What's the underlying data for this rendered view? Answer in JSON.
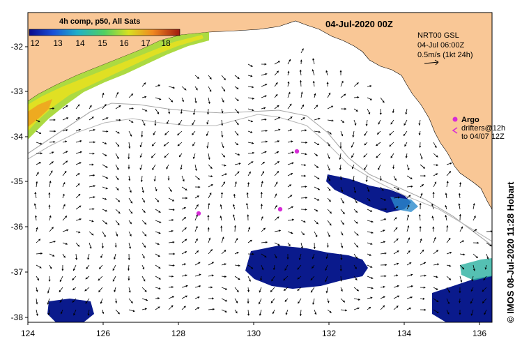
{
  "map": {
    "title": "04-Jul-2020 00Z",
    "colorbar": {
      "title": "4h comp, p50, All Sats",
      "ticks": [
        "12",
        "13",
        "14",
        "15",
        "16",
        "17",
        "18"
      ]
    },
    "info_box": {
      "line1": "NRT00 GSL",
      "line2": "04-Jul 06:00Z",
      "line3": "0.5m/s (1kt 24h)"
    },
    "argo": {
      "label": "Argo",
      "drifters_line1": "drifters@12h",
      "drifters_line2": "to 04/07 12Z"
    },
    "credit": "© IMOS 08-Jul-2020 11:28 Hobart",
    "lon_ticks": [
      "124",
      "126",
      "128",
      "130",
      "132",
      "134",
      "136"
    ],
    "lat_ticks": [
      "-32",
      "-33",
      "-34",
      "-35",
      "-36",
      "-37",
      "-38"
    ],
    "colors": {
      "land": "#f9c796",
      "cold": "#0a1a8c",
      "warm": "#b8e02a",
      "argo": "#d62bd6"
    }
  }
}
